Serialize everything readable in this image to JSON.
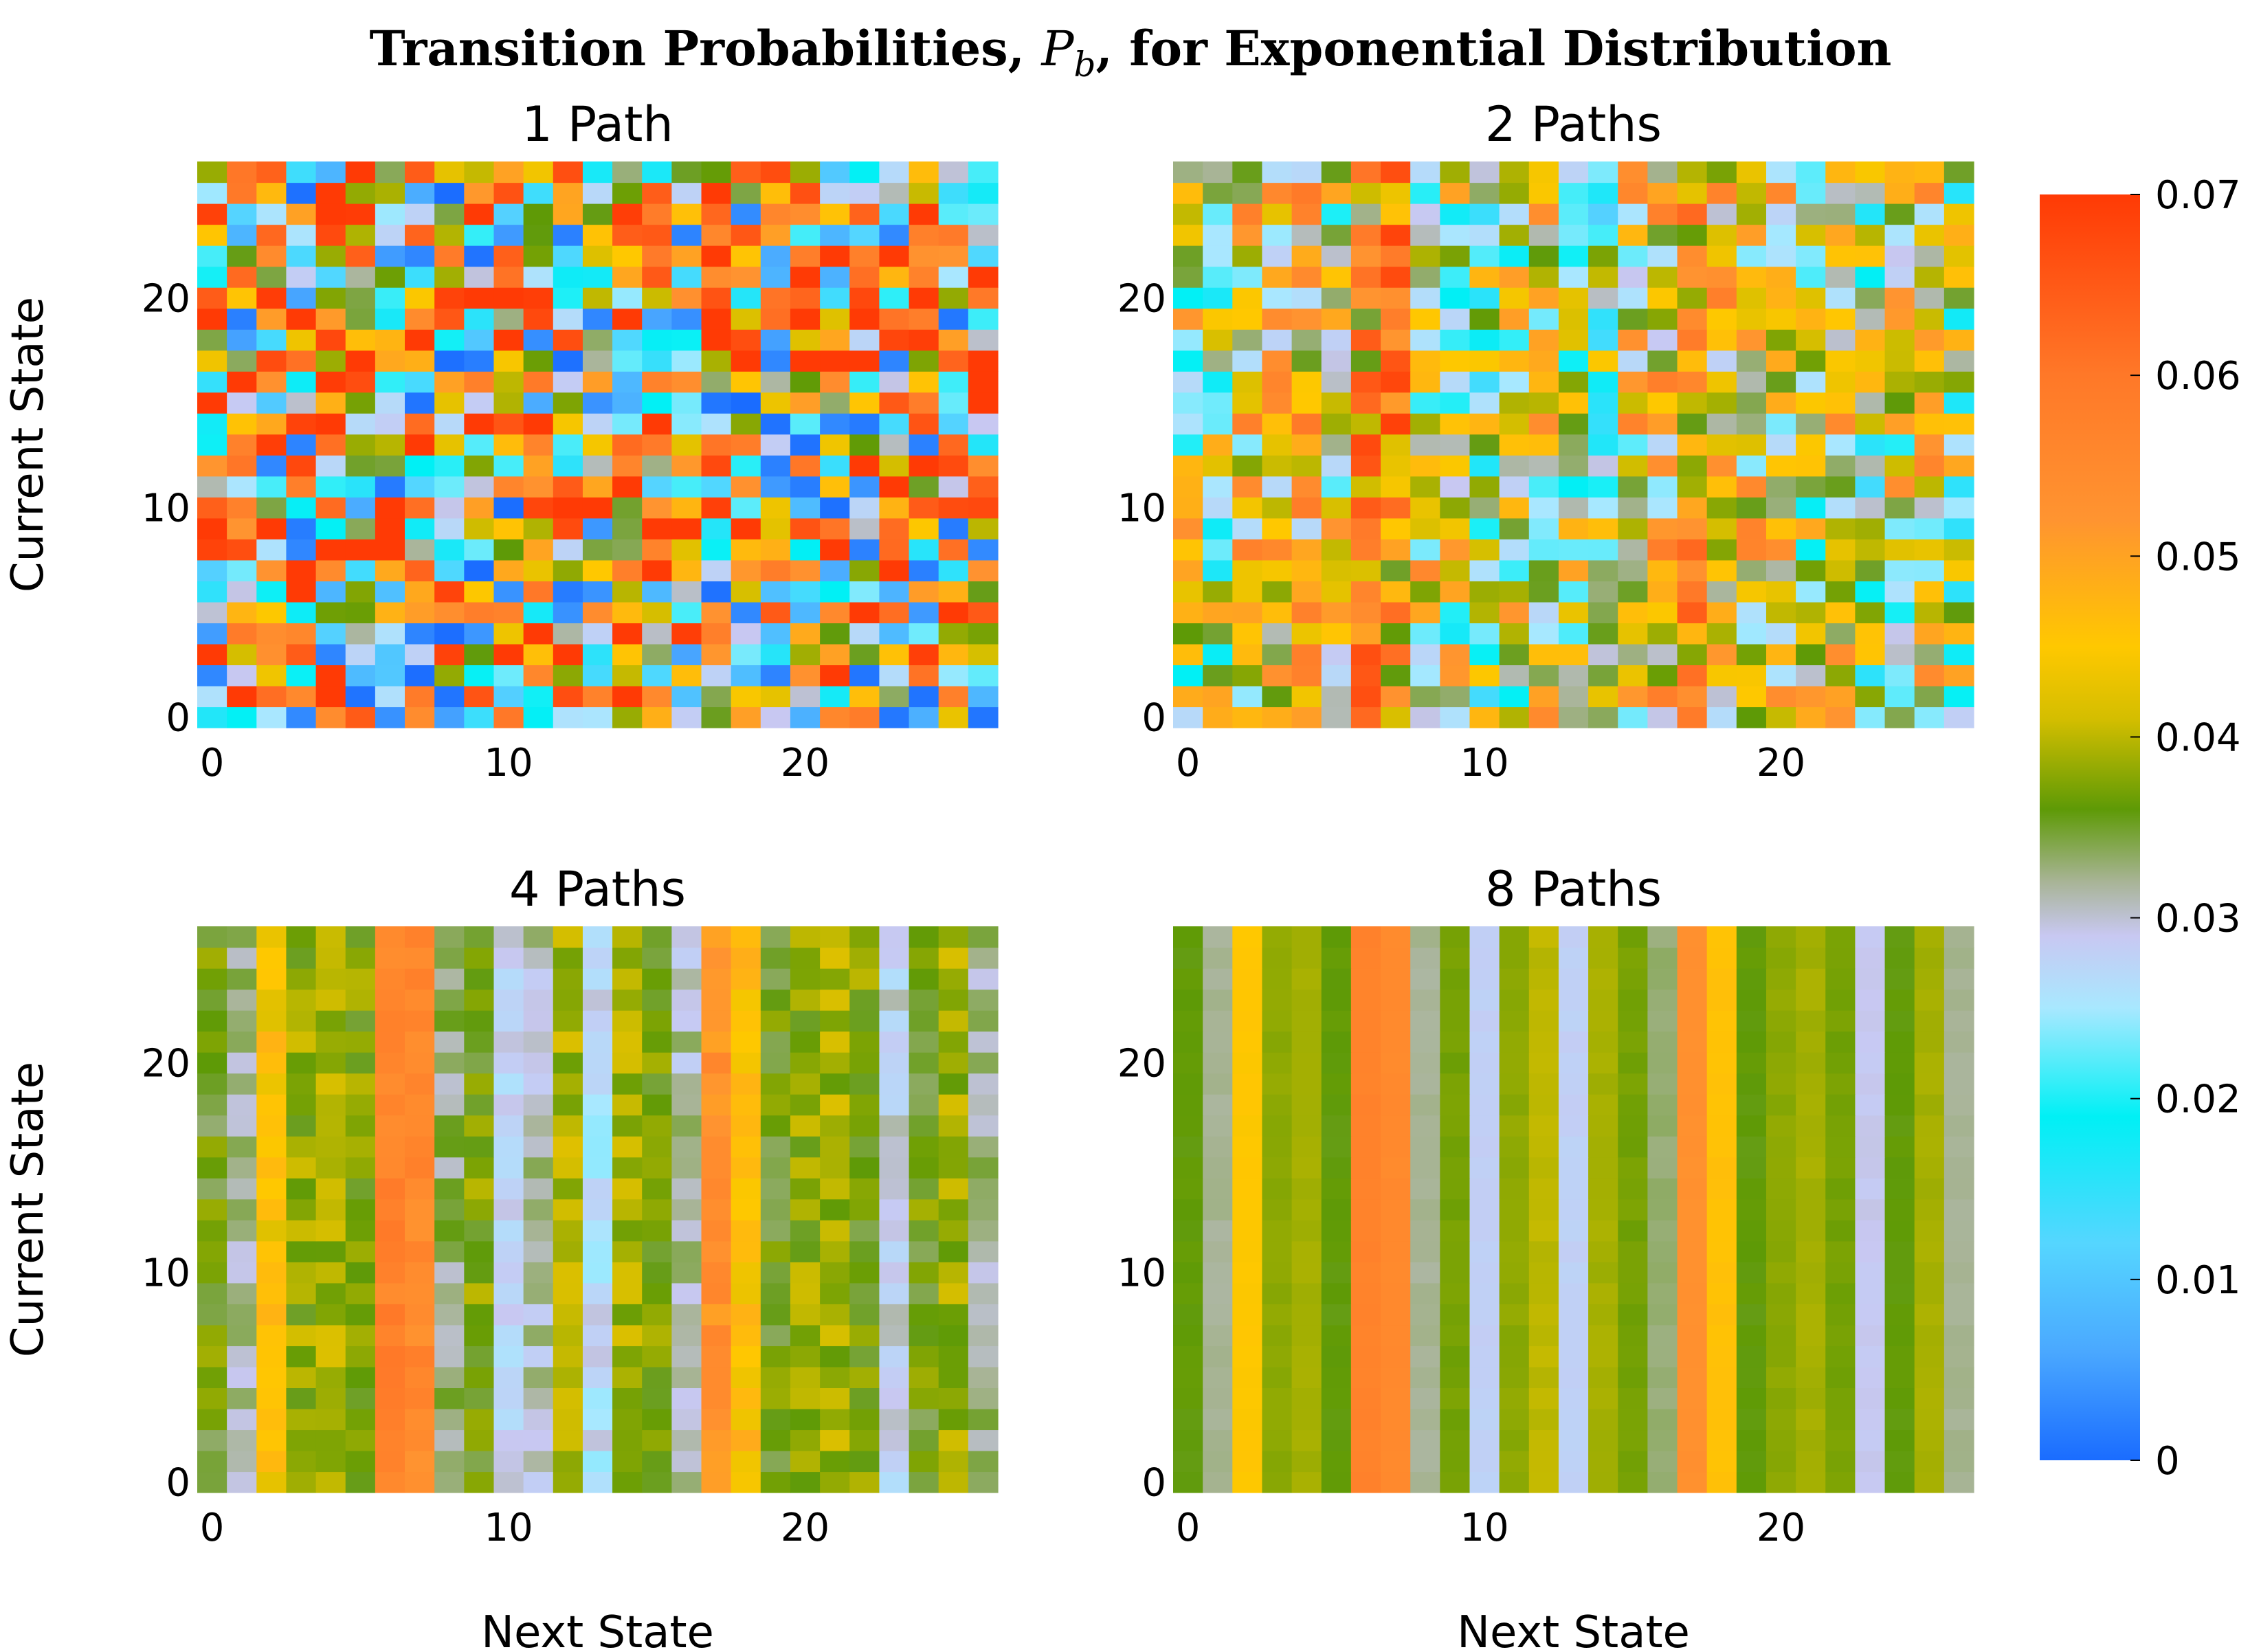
{
  "figure": {
    "title_prefix": "Transition Probabilities, ",
    "title_symbol": "P",
    "title_subscript": "b",
    "title_suffix": ", for Exponential Distribution"
  },
  "colorbar": {
    "ticks": [
      "0",
      "0.01",
      "0.02",
      "0.03",
      "0.04",
      "0.05",
      "0.06",
      "0.07"
    ],
    "stops": [
      {
        "v": 0.0,
        "color": "#1a6cff"
      },
      {
        "v": 0.006,
        "color": "#4aa8ff"
      },
      {
        "v": 0.012,
        "color": "#55d6ff"
      },
      {
        "v": 0.019,
        "color": "#00f0f5"
      },
      {
        "v": 0.025,
        "color": "#a8e8ff"
      },
      {
        "v": 0.029,
        "color": "#c8c8f2"
      },
      {
        "v": 0.032,
        "color": "#a8b496"
      },
      {
        "v": 0.036,
        "color": "#5e9a06"
      },
      {
        "v": 0.041,
        "color": "#d4be00"
      },
      {
        "v": 0.045,
        "color": "#ffc800"
      },
      {
        "v": 0.052,
        "color": "#ff9430"
      },
      {
        "v": 0.06,
        "color": "#ff7828"
      },
      {
        "v": 0.07,
        "color": "#ff3a05"
      }
    ]
  },
  "chart_data": [
    {
      "type": "heatmap",
      "title": "1 Path",
      "xlabel": "",
      "ylabel": "Current State",
      "x_ticks": [
        "0",
        "10",
        "20"
      ],
      "y_ticks": [
        "0",
        "10",
        "20"
      ],
      "n_states": 27,
      "vlim": [
        0,
        0.07
      ],
      "column_means": [
        0.037,
        0.037,
        0.037,
        0.037,
        0.037,
        0.037,
        0.037,
        0.037,
        0.037,
        0.037,
        0.037,
        0.037,
        0.037,
        0.037,
        0.037,
        0.037,
        0.037,
        0.037,
        0.037,
        0.037,
        0.037,
        0.037,
        0.037,
        0.037,
        0.037,
        0.037,
        0.037
      ],
      "spread": 0.04,
      "seed": 11
    },
    {
      "type": "heatmap",
      "title": "2 Paths",
      "xlabel": "",
      "ylabel": "",
      "x_ticks": [
        "0",
        "10",
        "20"
      ],
      "y_ticks": [
        "0",
        "10",
        "20"
      ],
      "n_states": 27,
      "vlim": [
        0,
        0.07
      ],
      "column_means": [
        0.036,
        0.034,
        0.041,
        0.04,
        0.043,
        0.038,
        0.05,
        0.052,
        0.038,
        0.035,
        0.031,
        0.036,
        0.039,
        0.033,
        0.029,
        0.04,
        0.042,
        0.05,
        0.043,
        0.041,
        0.038,
        0.036,
        0.04,
        0.03,
        0.037,
        0.039,
        0.033
      ],
      "spread": 0.018,
      "seed": 29
    },
    {
      "type": "heatmap",
      "title": "4 Paths",
      "xlabel": "Next State",
      "ylabel": "Current State",
      "x_ticks": [
        "0",
        "10",
        "20"
      ],
      "y_ticks": [
        "0",
        "10",
        "20"
      ],
      "n_states": 27,
      "vlim": [
        0,
        0.07
      ],
      "column_means": [
        0.036,
        0.032,
        0.045,
        0.038,
        0.039,
        0.037,
        0.057,
        0.055,
        0.033,
        0.037,
        0.028,
        0.031,
        0.039,
        0.027,
        0.039,
        0.037,
        0.031,
        0.053,
        0.046,
        0.036,
        0.038,
        0.039,
        0.037,
        0.029,
        0.036,
        0.039,
        0.032
      ],
      "spread": 0.003,
      "seed": 53
    },
    {
      "type": "heatmap",
      "title": "8 Paths",
      "xlabel": "Next State",
      "ylabel": "",
      "x_ticks": [
        "0",
        "10",
        "20"
      ],
      "y_ticks": [
        "0",
        "10",
        "20"
      ],
      "n_states": 27,
      "vlim": [
        0,
        0.07
      ],
      "column_means": [
        0.036,
        0.032,
        0.045,
        0.038,
        0.039,
        0.036,
        0.057,
        0.055,
        0.032,
        0.037,
        0.028,
        0.038,
        0.04,
        0.028,
        0.039,
        0.037,
        0.033,
        0.053,
        0.046,
        0.036,
        0.038,
        0.039,
        0.037,
        0.029,
        0.036,
        0.039,
        0.032
      ],
      "spread": 0.0004,
      "seed": 71
    }
  ]
}
